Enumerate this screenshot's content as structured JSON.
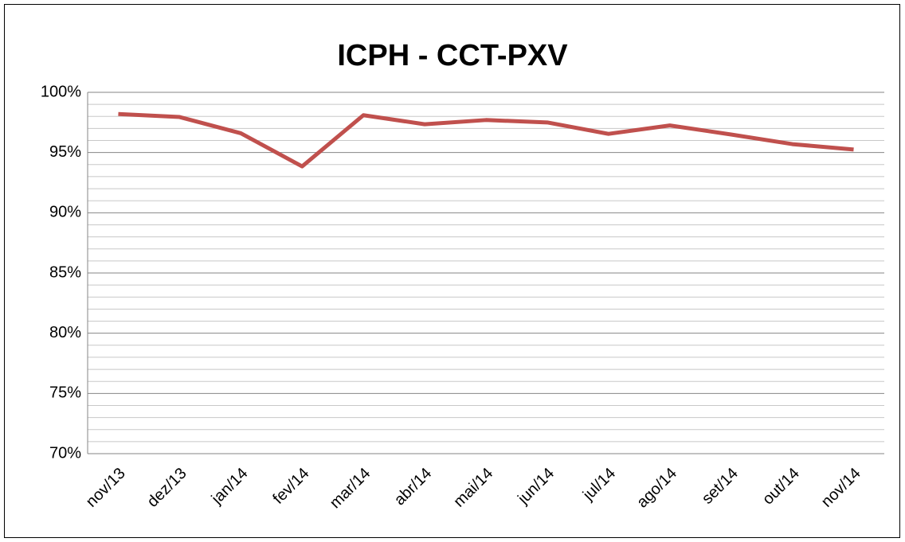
{
  "chart_data": {
    "type": "line",
    "title": "ICPH - CCT-PXV",
    "categories": [
      "nov/13",
      "dez/13",
      "jan/14",
      "fev/14",
      "mar/14",
      "abr/14",
      "mai/14",
      "jun/14",
      "jul/14",
      "ago/14",
      "set/14",
      "out/14",
      "nov/14"
    ],
    "series": [
      {
        "name": "ICPH",
        "color": "#c0504d",
        "values": [
          98.2,
          97.95,
          96.6,
          93.85,
          98.1,
          97.35,
          97.7,
          97.5,
          96.55,
          97.25,
          96.5,
          95.7,
          95.25
        ]
      }
    ],
    "ylim": [
      70,
      100
    ],
    "yticks": [
      {
        "value": 70,
        "label": "70%"
      },
      {
        "value": 75,
        "label": "75%"
      },
      {
        "value": 80,
        "label": "80%"
      },
      {
        "value": 85,
        "label": "85%"
      },
      {
        "value": 90,
        "label": "90%"
      },
      {
        "value": 95,
        "label": "95%"
      },
      {
        "value": 100,
        "label": "100%"
      }
    ],
    "minor_yticks": [
      71,
      72,
      73,
      74,
      76,
      77,
      78,
      79,
      81,
      82,
      83,
      84,
      86,
      87,
      88,
      89,
      91,
      92,
      93,
      94,
      96,
      97,
      98,
      99
    ],
    "grid": true,
    "legend": false
  }
}
